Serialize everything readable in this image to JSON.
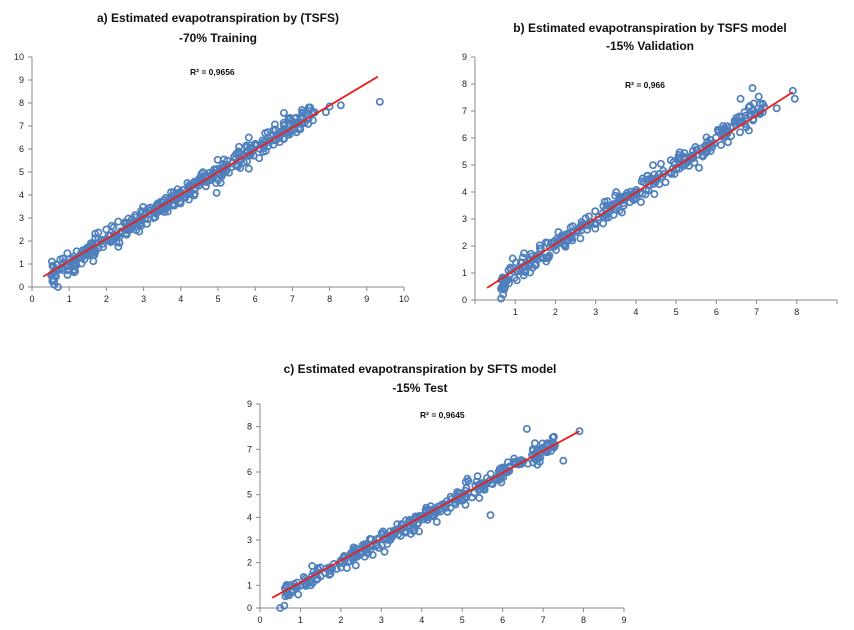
{
  "colors": {
    "points": "#4f7fbd",
    "fit": "#e8201b"
  },
  "chart_data": [
    {
      "type": "scatter",
      "title": "a) Estimated evapotranspiration by (TSFS)",
      "subtitle": "-70% Training",
      "annotation": "R² = 0,9656",
      "xlim": [
        0,
        10
      ],
      "ylim": [
        0,
        10
      ],
      "xticks": [
        "0",
        "1",
        "2",
        "3",
        "4",
        "5",
        "6",
        "7",
        "8",
        "9",
        "10"
      ],
      "yticks": [
        "0",
        "1",
        "2",
        "3",
        "4",
        "5",
        "6",
        "7",
        "8",
        "9",
        "10"
      ],
      "trendline": {
        "x": [
          0.3,
          9.3
        ],
        "y": [
          0.45,
          9.15
        ]
      },
      "points": {
        "n": 420,
        "xmin": 0.5,
        "xmax": 7.6,
        "slope": 1.0,
        "intercept": 0.0,
        "spread": 0.42,
        "seed": 11
      },
      "extra_points": [
        [
          0.7,
          0.0
        ],
        [
          0.6,
          0.1
        ],
        [
          0.55,
          0.3
        ],
        [
          8.3,
          7.9
        ],
        [
          9.35,
          8.05
        ],
        [
          7.9,
          7.6
        ],
        [
          8.0,
          7.85
        ]
      ]
    },
    {
      "type": "scatter",
      "title": "b) Estimated evapotranspiration by TSFS model",
      "subtitle": "-15% Validation",
      "annotation": "R² = 0,966",
      "xlim": [
        0,
        9
      ],
      "ylim": [
        0,
        9
      ],
      "xticks": [
        "0",
        "1",
        "2",
        "3",
        "4",
        "5",
        "6",
        "7",
        "8",
        "9"
      ],
      "yticks": [
        "0",
        "1",
        "2",
        "3",
        "4",
        "5",
        "6",
        "7",
        "8",
        "9"
      ],
      "xtick_labels_shown": [
        "",
        "1",
        "2",
        "3",
        "4",
        "5",
        "6",
        "7",
        "8",
        ""
      ],
      "trendline": {
        "x": [
          0.3,
          7.9
        ],
        "y": [
          0.45,
          7.7
        ]
      },
      "points": {
        "n": 330,
        "xmin": 0.6,
        "xmax": 7.2,
        "slope": 0.98,
        "intercept": 0.05,
        "spread": 0.38,
        "seed": 23
      },
      "extra_points": [
        [
          0.65,
          0.05
        ],
        [
          0.7,
          0.2
        ],
        [
          6.9,
          7.85
        ],
        [
          7.9,
          7.75
        ],
        [
          7.95,
          7.45
        ],
        [
          7.5,
          7.1
        ],
        [
          6.6,
          7.45
        ]
      ]
    },
    {
      "type": "scatter",
      "title": "c) Estimated evapotranspiration by SFTS model",
      "subtitle": "-15% Test",
      "annotation": "R² = 0,9645",
      "xlim": [
        0,
        9
      ],
      "ylim": [
        0,
        9
      ],
      "xticks": [
        "0",
        "1",
        "2",
        "3",
        "4",
        "5",
        "6",
        "7",
        "8",
        "9"
      ],
      "yticks": [
        "0",
        "1",
        "2",
        "3",
        "4",
        "5",
        "6",
        "7",
        "8",
        "9"
      ],
      "trendline": {
        "x": [
          0.3,
          7.9
        ],
        "y": [
          0.45,
          7.8
        ]
      },
      "points": {
        "n": 330,
        "xmin": 0.6,
        "xmax": 7.3,
        "slope": 0.99,
        "intercept": 0.02,
        "spread": 0.36,
        "seed": 37
      },
      "extra_points": [
        [
          0.5,
          0.0
        ],
        [
          0.6,
          0.1
        ],
        [
          6.6,
          7.9
        ],
        [
          7.9,
          7.8
        ],
        [
          5.7,
          4.1
        ],
        [
          7.5,
          6.5
        ]
      ]
    }
  ]
}
